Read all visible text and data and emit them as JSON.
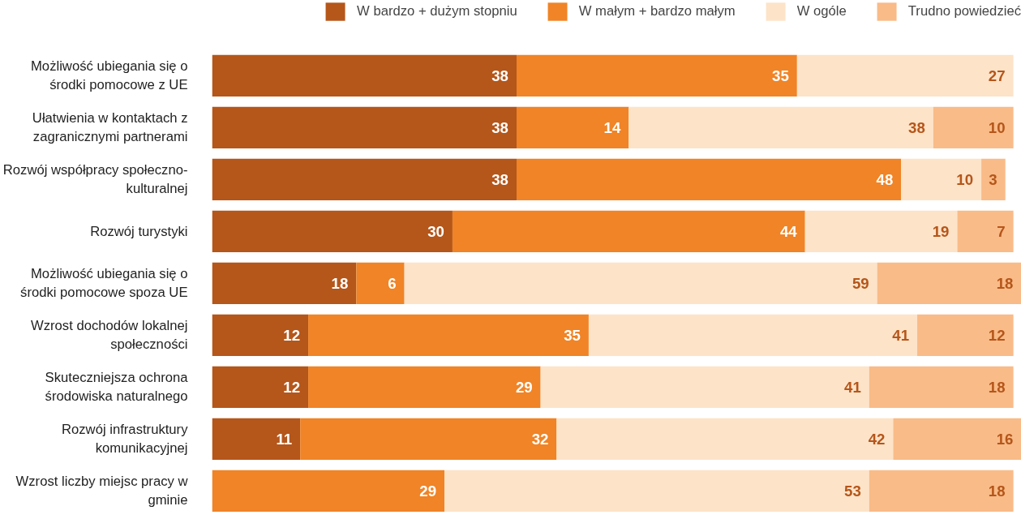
{
  "chart_data": {
    "type": "bar",
    "orientation": "horizontal",
    "stacked": true,
    "data_labels": true,
    "legend": "top",
    "grid": false,
    "xlim": [
      0,
      101
    ],
    "categories": [
      "Możliwość ubiegania się o środki pomocowe z UE",
      "Ułatwienia w kontaktach z zagranicznymi partnerami",
      "Rozwój współpracy społeczno-kulturalnej",
      "Rozwój turystyki",
      "Możliwość ubiegania się o środki pomocowe spoza UE",
      "Wzrost dochodów lokalnej społeczności",
      "Skuteczniejsza ochrona środowiska naturalnego",
      "Rozwój infrastruktury komunikacyjnej",
      "Wzrost liczby miejsc pracy w gminie"
    ],
    "series": [
      {
        "name": "W bardzo + dużym stopniu",
        "color": "#b5561a",
        "values": [
          38,
          38,
          38,
          30,
          18,
          12,
          12,
          11,
          null
        ]
      },
      {
        "name": "W małym + bardzo małym",
        "color": "#f08426",
        "values": [
          35,
          14,
          48,
          44,
          6,
          35,
          29,
          32,
          29
        ]
      },
      {
        "name": "W ogóle",
        "color": "#fde3c8",
        "values": [
          27,
          38,
          10,
          19,
          59,
          41,
          41,
          42,
          53
        ]
      },
      {
        "name": "Trudno powiedzieć",
        "color": "#f9bb88",
        "values": [
          null,
          10,
          3,
          7,
          18,
          12,
          18,
          16,
          18
        ]
      }
    ]
  }
}
